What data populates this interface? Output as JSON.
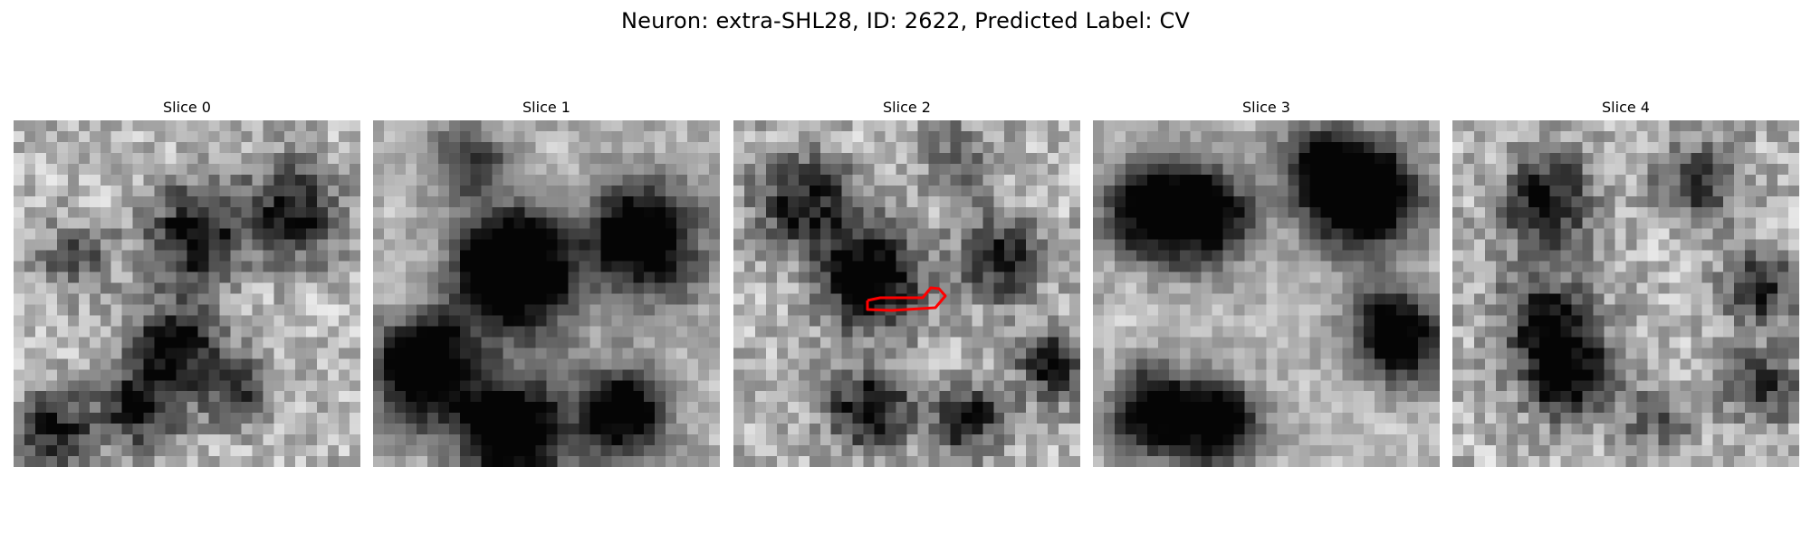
{
  "figure": {
    "title": "Neuron: extra-SHL28, ID: 2622, Predicted Label: CV"
  },
  "panels": [
    {
      "title": "Slice 0"
    },
    {
      "title": "Slice 1"
    },
    {
      "title": "Slice 2"
    },
    {
      "title": "Slice 3"
    },
    {
      "title": "Slice 4"
    }
  ],
  "colors": {
    "background": "#ffffff",
    "roi_outline": "#ff0000",
    "colormap": "gray"
  }
}
